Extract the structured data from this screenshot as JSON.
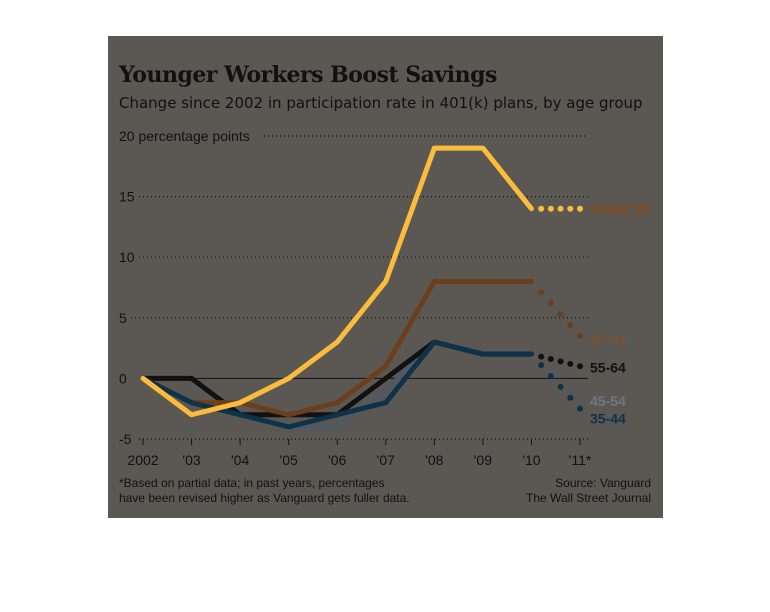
{
  "header": {
    "title": "Younger Workers Boost Savings",
    "subtitle": "Change since 2002 in participation rate in 401(k) plans, by age group"
  },
  "footer": {
    "footnote_line1": "*Based on partial data; in past years, percentages",
    "footnote_line2": "have been revised higher as Vanguard gets fuller data.",
    "source": "Source: Vanguard",
    "publisher": "The Wall Street Journal"
  },
  "colors": {
    "background": "#5b5853",
    "under_25": "#fbbc3c",
    "25_34": "#6b3f1c",
    "35_44": "#0e3349",
    "45_54": "#4f5a64",
    "55_64": "#111111",
    "under_25_label": "#8a4a1c",
    "25_34_label": "#7d5030",
    "45_54_label": "#6d7882",
    "35_44_label": "#0e3349"
  },
  "chart_data": {
    "type": "line",
    "title": "Younger Workers Boost Savings",
    "subtitle": "Change since 2002 in participation rate in 401(k) plans, by age group",
    "ylabel": "percentage points",
    "x": [
      2002,
      2003,
      2004,
      2005,
      2006,
      2007,
      2008,
      2009,
      2010,
      2011
    ],
    "x_tick_labels": [
      "2002",
      "'03",
      "'04",
      "'05",
      "'06",
      "'07",
      "'08",
      "'09",
      "'10",
      "'11*"
    ],
    "y_ticks": [
      -5,
      0,
      5,
      10,
      15,
      20
    ],
    "y_tick_labels": [
      "-5",
      "0",
      "5",
      "10",
      "15",
      "20"
    ],
    "y_top_label_suffix": "percentage points",
    "ylim": [
      -5,
      20
    ],
    "grid": "dotted horizontal",
    "zero_line": true,
    "partial_data_from": 2010,
    "series": [
      {
        "name": "Under 25",
        "values": [
          0,
          -3,
          -2,
          0,
          3,
          8,
          19,
          19,
          14,
          14
        ]
      },
      {
        "name": "25-34",
        "values": [
          0,
          -2,
          -2,
          -3,
          -2,
          1,
          8,
          8,
          8,
          3.5
        ]
      },
      {
        "name": "55-64",
        "values": [
          0,
          0,
          -3,
          -3,
          -3,
          0,
          3,
          2,
          2,
          1
        ]
      },
      {
        "name": "45-54",
        "values": [
          0,
          -2,
          -3,
          -4,
          -4,
          -1,
          3,
          2,
          2,
          -1.8
        ]
      },
      {
        "name": "35-44",
        "values": [
          0,
          -2,
          -3,
          -4,
          -3,
          -2,
          3,
          2,
          2,
          -2.5
        ]
      }
    ]
  }
}
